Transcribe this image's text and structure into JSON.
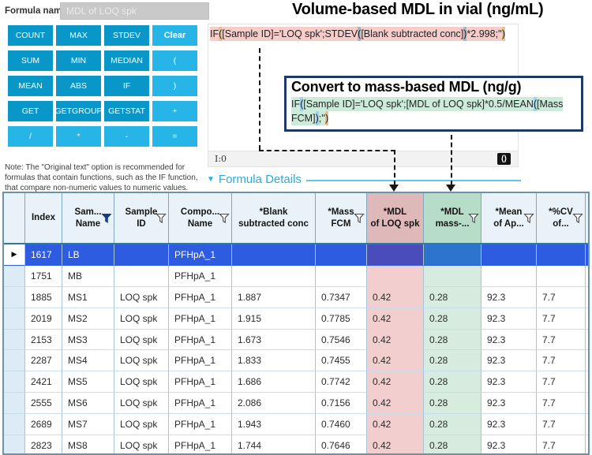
{
  "header": {
    "formula_name_label": "Formula name",
    "formula_name_value": "MDL of LOQ spk",
    "title": "Volume-based MDL in vial (ng/mL)"
  },
  "buttons": [
    {
      "label": "COUNT",
      "variant": "dark"
    },
    {
      "label": "MAX",
      "variant": "dark"
    },
    {
      "label": "STDEV",
      "variant": "dark"
    },
    {
      "label": "Clear",
      "variant": "light",
      "bold": true
    },
    {
      "label": "SUM",
      "variant": "dark"
    },
    {
      "label": "MIN",
      "variant": "dark"
    },
    {
      "label": "MEDIAN",
      "variant": "dark"
    },
    {
      "label": "(",
      "variant": "light"
    },
    {
      "label": "MEAN",
      "variant": "dark"
    },
    {
      "label": "ABS",
      "variant": "dark"
    },
    {
      "label": "IF",
      "variant": "dark"
    },
    {
      "label": ")",
      "variant": "light"
    },
    {
      "label": "GET",
      "variant": "dark"
    },
    {
      "label": "GETGROUP",
      "variant": "dark"
    },
    {
      "label": "GETSTAT",
      "variant": "dark"
    },
    {
      "label": "+",
      "variant": "light"
    },
    {
      "label": "/",
      "variant": "light"
    },
    {
      "label": "*",
      "variant": "light"
    },
    {
      "label": "-",
      "variant": "light"
    },
    {
      "label": "=",
      "variant": "light"
    }
  ],
  "formula_editor": {
    "segments": [
      {
        "t": "IF",
        "h": "base"
      },
      {
        "t": "(",
        "h": "tan"
      },
      {
        "t": "[Sample ID]='LOQ spk';STDEV",
        "h": "base"
      },
      {
        "t": "(",
        "h": "gray"
      },
      {
        "t": "[Blank subtracted conc]",
        "h": "base"
      },
      {
        "t": ")",
        "h": "gray"
      },
      {
        "t": "*2.998;''",
        "h": "base"
      },
      {
        "t": ")",
        "h": "tan"
      }
    ],
    "status_left": "I:0",
    "status_right": "()"
  },
  "callout": {
    "title": "Convert to mass-based MDL (ng/g)",
    "segments": [
      {
        "t": "IF",
        "h": "base"
      },
      {
        "t": "(",
        "h": "blue"
      },
      {
        "t": "[Sample ID]='LOQ spk';[MDL of LOQ spk]*0.5/MEAN",
        "h": "base"
      },
      {
        "t": "(",
        "h": "blue"
      },
      {
        "t": "[Mass FCM]",
        "h": "base"
      },
      {
        "t": ")",
        "h": "blue"
      },
      {
        "t": ";''",
        "h": "base"
      },
      {
        "t": ")",
        "h": "tan"
      }
    ]
  },
  "note_text": "Note: The \"Original text\" option is recommended for formulas that contain functions, such as the IF function, that compare non-numeric values to numeric values.",
  "formula_details_label": "Formula Details",
  "colors": {
    "button_dark": "#0897c8",
    "button_light": "#27b5e8",
    "formula_pink": "#f6cdc9",
    "formula_green": "#cdebdb",
    "column_pink": "#f2cfce",
    "column_green": "#d7ecdf",
    "selected_row_blue": "#2e5ce0",
    "details_cyan": "#2aabdf"
  },
  "table": {
    "columns": [
      {
        "id": "indicator",
        "label": "",
        "width": 27,
        "funnel": null,
        "highlight": "none"
      },
      {
        "id": "index",
        "label": "Index",
        "width": 47,
        "funnel": null,
        "highlight": "none"
      },
      {
        "id": "sample_name",
        "label": "Sam...\nName",
        "width": 66,
        "funnel": "active",
        "highlight": "none"
      },
      {
        "id": "sample_id",
        "label": "Sample\nID",
        "width": 69,
        "funnel": "outline",
        "highlight": "none"
      },
      {
        "id": "component_name",
        "label": "Compo...\nName",
        "width": 80,
        "funnel": "outline",
        "highlight": "none"
      },
      {
        "id": "blank_subtracted_conc",
        "label": "*Blank\nsubtracted conc",
        "width": 106,
        "funnel": null,
        "highlight": "none"
      },
      {
        "id": "mass_fcm",
        "label": "*Mass\nFCM",
        "width": 65,
        "funnel": "outline",
        "highlight": "none"
      },
      {
        "id": "mdl_of_loq_spk",
        "label": "*MDL\nof LOQ spk",
        "width": 72,
        "funnel": null,
        "highlight": "pink"
      },
      {
        "id": "mdl_mass",
        "label": "*MDL\nmass-...",
        "width": 73,
        "funnel": "outline",
        "highlight": "green"
      },
      {
        "id": "mean_of_ap",
        "label": "*Mean\nof Ap...",
        "width": 70,
        "funnel": "outline",
        "highlight": "none"
      },
      {
        "id": "pct_cv_of",
        "label": "*%CV\nof...",
        "width": 62,
        "funnel": "outline",
        "highlight": "none"
      },
      {
        "id": "clipped",
        "label": "",
        "width": 14,
        "funnel": null,
        "highlight": "none"
      }
    ],
    "rows": [
      {
        "selected": true,
        "cells": {
          "index": "1617",
          "sample_name": "LB",
          "sample_id": "",
          "component_name": "PFHpA_1",
          "blank_subtracted_conc": "",
          "mass_fcm": "",
          "mdl_of_loq_spk": "",
          "mdl_mass": "",
          "mean_of_ap": "",
          "pct_cv_of": ""
        }
      },
      {
        "selected": false,
        "cells": {
          "index": "1751",
          "sample_name": "MB",
          "sample_id": "",
          "component_name": "PFHpA_1",
          "blank_subtracted_conc": "",
          "mass_fcm": "",
          "mdl_of_loq_spk": "",
          "mdl_mass": "",
          "mean_of_ap": "",
          "pct_cv_of": ""
        }
      },
      {
        "selected": false,
        "cells": {
          "index": "1885",
          "sample_name": "MS1",
          "sample_id": "LOQ spk",
          "component_name": "PFHpA_1",
          "blank_subtracted_conc": "1.887",
          "mass_fcm": "0.7347",
          "mdl_of_loq_spk": "0.42",
          "mdl_mass": "0.28",
          "mean_of_ap": "92.3",
          "pct_cv_of": "7.7"
        }
      },
      {
        "selected": false,
        "cells": {
          "index": "2019",
          "sample_name": "MS2",
          "sample_id": "LOQ spk",
          "component_name": "PFHpA_1",
          "blank_subtracted_conc": "1.915",
          "mass_fcm": "0.7785",
          "mdl_of_loq_spk": "0.42",
          "mdl_mass": "0.28",
          "mean_of_ap": "92.3",
          "pct_cv_of": "7.7"
        }
      },
      {
        "selected": false,
        "cells": {
          "index": "2153",
          "sample_name": "MS3",
          "sample_id": "LOQ spk",
          "component_name": "PFHpA_1",
          "blank_subtracted_conc": "1.673",
          "mass_fcm": "0.7546",
          "mdl_of_loq_spk": "0.42",
          "mdl_mass": "0.28",
          "mean_of_ap": "92.3",
          "pct_cv_of": "7.7"
        }
      },
      {
        "selected": false,
        "cells": {
          "index": "2287",
          "sample_name": "MS4",
          "sample_id": "LOQ spk",
          "component_name": "PFHpA_1",
          "blank_subtracted_conc": "1.833",
          "mass_fcm": "0.7455",
          "mdl_of_loq_spk": "0.42",
          "mdl_mass": "0.28",
          "mean_of_ap": "92.3",
          "pct_cv_of": "7.7"
        }
      },
      {
        "selected": false,
        "cells": {
          "index": "2421",
          "sample_name": "MS5",
          "sample_id": "LOQ spk",
          "component_name": "PFHpA_1",
          "blank_subtracted_conc": "1.686",
          "mass_fcm": "0.7742",
          "mdl_of_loq_spk": "0.42",
          "mdl_mass": "0.28",
          "mean_of_ap": "92.3",
          "pct_cv_of": "7.7"
        }
      },
      {
        "selected": false,
        "cells": {
          "index": "2555",
          "sample_name": "MS6",
          "sample_id": "LOQ spk",
          "component_name": "PFHpA_1",
          "blank_subtracted_conc": "2.086",
          "mass_fcm": "0.7156",
          "mdl_of_loq_spk": "0.42",
          "mdl_mass": "0.28",
          "mean_of_ap": "92.3",
          "pct_cv_of": "7.7"
        }
      },
      {
        "selected": false,
        "cells": {
          "index": "2689",
          "sample_name": "MS7",
          "sample_id": "LOQ spk",
          "component_name": "PFHpA_1",
          "blank_subtracted_conc": "1.943",
          "mass_fcm": "0.7460",
          "mdl_of_loq_spk": "0.42",
          "mdl_mass": "0.28",
          "mean_of_ap": "92.3",
          "pct_cv_of": "7.7"
        }
      },
      {
        "selected": false,
        "cells": {
          "index": "2823",
          "sample_name": "MS8",
          "sample_id": "LOQ spk",
          "component_name": "PFHpA_1",
          "blank_subtracted_conc": "1.744",
          "mass_fcm": "0.7646",
          "mdl_of_loq_spk": "0.42",
          "mdl_mass": "0.28",
          "mean_of_ap": "92.3",
          "pct_cv_of": "7.7"
        }
      }
    ]
  }
}
